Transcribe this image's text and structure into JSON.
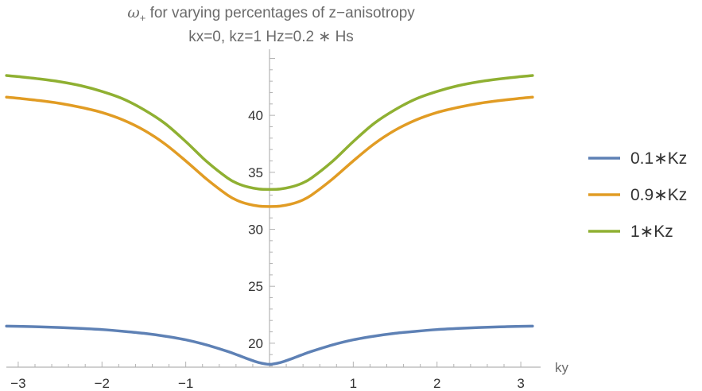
{
  "chart_data": {
    "type": "line",
    "title_symbol": "ω",
    "title_subscript": "+",
    "title_rest": " for varying percentages of z−anisotropy",
    "subtitle": "kx=0, kz=1 Hz=0.2 ∗ Hs",
    "xlabel": "ky",
    "ylabel": "",
    "xlim": [
      -3.14159,
      3.14159
    ],
    "ylim": [
      17.9,
      45.8
    ],
    "x_ticks": [
      -3,
      -2,
      -1,
      1,
      2,
      3
    ],
    "x_tick_labels": [
      "−3",
      "−2",
      "−1",
      "1",
      "2",
      "3"
    ],
    "y_ticks": [
      20,
      25,
      30,
      35,
      40
    ],
    "y_tick_labels": [
      "20",
      "25",
      "30",
      "35",
      "40"
    ],
    "legend_position": "right",
    "grid": false,
    "series": [
      {
        "name": "0.1∗Kz",
        "color": "#5e81b5",
        "x": [
          -3.14,
          -3.0,
          -2.75,
          -2.5,
          -2.25,
          -2.0,
          -1.75,
          -1.5,
          -1.25,
          -1.0,
          -0.75,
          -0.5,
          -0.375,
          -0.25,
          -0.125,
          0.0,
          0.125,
          0.25,
          0.375,
          0.5,
          0.75,
          1.0,
          1.25,
          1.5,
          1.75,
          2.0,
          2.25,
          2.5,
          2.75,
          3.0,
          3.14
        ],
        "values": [
          21.5,
          21.48,
          21.44,
          21.38,
          21.3,
          21.2,
          21.05,
          20.87,
          20.62,
          20.3,
          19.85,
          19.28,
          18.95,
          18.6,
          18.3,
          18.15,
          18.3,
          18.6,
          18.95,
          19.28,
          19.85,
          20.3,
          20.62,
          20.87,
          21.05,
          21.2,
          21.3,
          21.38,
          21.44,
          21.48,
          21.5
        ]
      },
      {
        "name": "0.9∗Kz",
        "color": "#e19c24",
        "x": [
          -3.14,
          -3.0,
          -2.75,
          -2.5,
          -2.25,
          -2.0,
          -1.75,
          -1.5,
          -1.25,
          -1.0,
          -0.75,
          -0.5,
          -0.375,
          -0.25,
          -0.125,
          0.0,
          0.125,
          0.25,
          0.375,
          0.5,
          0.75,
          1.0,
          1.25,
          1.5,
          1.75,
          2.0,
          2.25,
          2.5,
          2.75,
          3.0,
          3.14
        ],
        "values": [
          41.6,
          41.5,
          41.3,
          41.05,
          40.7,
          40.25,
          39.6,
          38.7,
          37.5,
          36.0,
          34.4,
          33.0,
          32.5,
          32.2,
          32.03,
          32.0,
          32.03,
          32.2,
          32.5,
          33.0,
          34.4,
          36.0,
          37.5,
          38.7,
          39.6,
          40.25,
          40.7,
          41.05,
          41.3,
          41.5,
          41.6
        ]
      },
      {
        "name": "1∗Kz",
        "color": "#8fb032",
        "x": [
          -3.14,
          -3.0,
          -2.75,
          -2.5,
          -2.25,
          -2.0,
          -1.75,
          -1.5,
          -1.25,
          -1.0,
          -0.75,
          -0.5,
          -0.375,
          -0.25,
          -0.125,
          0.0,
          0.125,
          0.25,
          0.375,
          0.5,
          0.75,
          1.0,
          1.25,
          1.5,
          1.75,
          2.0,
          2.25,
          2.5,
          2.75,
          3.0,
          3.14
        ],
        "values": [
          43.5,
          43.4,
          43.2,
          42.95,
          42.6,
          42.1,
          41.45,
          40.5,
          39.3,
          37.7,
          35.95,
          34.5,
          34.0,
          33.7,
          33.53,
          33.5,
          33.53,
          33.7,
          34.0,
          34.5,
          35.95,
          37.7,
          39.3,
          40.5,
          41.45,
          42.1,
          42.6,
          42.95,
          43.2,
          43.4,
          43.5
        ]
      }
    ]
  }
}
